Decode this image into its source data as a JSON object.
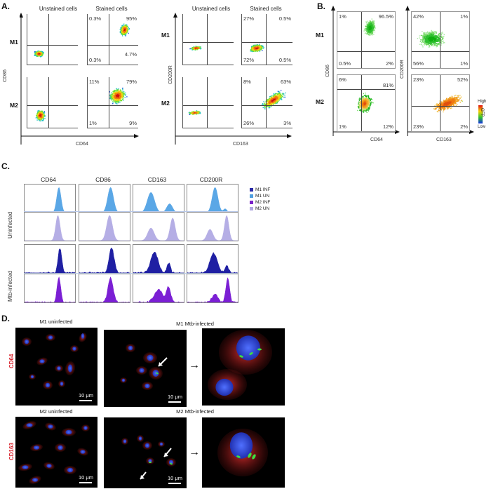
{
  "panels": {
    "a": {
      "letter": "A.",
      "left": {
        "col_titles": [
          "Unstained cells",
          "Stained cells"
        ],
        "rows": [
          "M1",
          "M2"
        ],
        "ylabel": "CD86",
        "xlabel": "CD64",
        "quadrants": {
          "M1": {
            "tl": "0.3%",
            "tr": "95%",
            "bl": "0.3%",
            "br": "4.7%"
          },
          "M2": {
            "tl": "11%",
            "tr": "79%",
            "bl": "1%",
            "br": "9%"
          }
        }
      },
      "right": {
        "col_titles": [
          "Unstained cells",
          "Stained cells"
        ],
        "rows": [
          "M1",
          "M2"
        ],
        "ylabel": "CD200R",
        "xlabel": "CD163",
        "quadrants": {
          "M1": {
            "tl": "27%",
            "tr": "0.5%",
            "bl": "72%",
            "br": "0.5%"
          },
          "M2": {
            "tl": "8%",
            "tr": "63%",
            "bl": "26%",
            "br": "3%"
          }
        }
      }
    },
    "b": {
      "letter": "B.",
      "rows": [
        "M1",
        "M2"
      ],
      "left": {
        "ylabel": "CD86",
        "xlabel": "CD64",
        "quadrants": {
          "M1": {
            "tl": "1%",
            "tr": "96.5%",
            "bl": "0.5%",
            "br": "2%"
          },
          "M2": {
            "tl": "6%",
            "tr": "81%",
            "bl": "1%",
            "br": "12%"
          }
        }
      },
      "right": {
        "ylabel": "CD200R",
        "xlabel": "CD163",
        "quadrants": {
          "M1": {
            "tl": "42%",
            "tr": "1%",
            "bl": "56%",
            "br": "1%"
          },
          "M2": {
            "tl": "23%",
            "tr": "52%",
            "bl": "23%",
            "br": "2%"
          }
        }
      },
      "colorbar": {
        "high": "High",
        "low": "Low",
        "label": "GFP"
      }
    },
    "c": {
      "letter": "C.",
      "markers": [
        "CD64",
        "CD86",
        "CD163",
        "CD200R"
      ],
      "row_labels": [
        "Uninfected",
        "Mtb-infected"
      ],
      "legend": [
        {
          "label": "M1 INF",
          "color": "#2a2aa8"
        },
        {
          "label": "M1 UN",
          "color": "#4f9fe0"
        },
        {
          "label": "M2 INF",
          "color": "#7a22c8"
        },
        {
          "label": "M2 UN",
          "color": "#b0a6e0"
        }
      ]
    },
    "d": {
      "letter": "D.",
      "titles": [
        "M1 uninfected",
        "M1 Mtb-infected",
        "M2 uninfected",
        "M2 Mtb-infected"
      ],
      "row_labels": [
        "CD64",
        "CD163"
      ],
      "scale": "10 μm",
      "arrow": "→"
    }
  },
  "colors": {
    "m1_inf": "#1f1fa3",
    "m1_un": "#5aa7e6",
    "m2_inf": "#7b1fd4",
    "m2_un": "#b5aee5",
    "label_red": "#d8202a"
  }
}
